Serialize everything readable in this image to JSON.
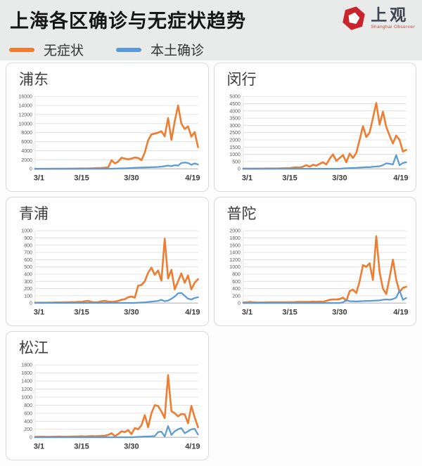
{
  "header": {
    "title": "上海各区确诊与无症状趋势",
    "logo": {
      "text": "上观",
      "subtext": "Shanghai Observer",
      "color": "#C8252C"
    }
  },
  "legend": [
    {
      "label": "无症状",
      "color": "#ED7D31"
    },
    {
      "label": "本土确诊",
      "color": "#5B9BD5"
    }
  ],
  "colors": {
    "asymptomatic": "#ED7D31",
    "confirmed": "#5B9BD5",
    "grid": "#dcdcdc",
    "axis": "#b3b3b3"
  },
  "chart_data": [
    {
      "type": "line",
      "title": "浦东",
      "grid": true,
      "legend_position": "none",
      "ylim": [
        0,
        16000
      ],
      "ytick_step": 2000,
      "x_ticks": {
        "labels": [
          "3/1",
          "3/15",
          "3/30",
          "4/19"
        ],
        "indexes": [
          0,
          14,
          29,
          49
        ]
      },
      "series": [
        {
          "name": "无症状",
          "color": "#ED7D31",
          "values": [
            5,
            5,
            5,
            8,
            8,
            10,
            12,
            15,
            18,
            20,
            25,
            30,
            40,
            50,
            60,
            60,
            80,
            100,
            130,
            160,
            200,
            250,
            300,
            1900,
            1200,
            1600,
            2450,
            2250,
            2100,
            2250,
            2500,
            2400,
            1900,
            3600,
            6300,
            7600,
            7800,
            8000,
            8300,
            7200,
            11200,
            6400,
            10500,
            14000,
            10000,
            8800,
            9400,
            7100,
            8100,
            4800
          ]
        },
        {
          "name": "本土确诊",
          "color": "#5B9BD5",
          "values": [
            0,
            0,
            0,
            0,
            0,
            0,
            0,
            0,
            0,
            0,
            0,
            0,
            0,
            0,
            0,
            0,
            0,
            0,
            5,
            5,
            10,
            10,
            15,
            30,
            50,
            80,
            100,
            120,
            150,
            180,
            220,
            250,
            280,
            300,
            320,
            350,
            380,
            420,
            480,
            600,
            700,
            600,
            800,
            700,
            1300,
            1400,
            1300,
            900,
            1200,
            950
          ]
        }
      ]
    },
    {
      "type": "line",
      "title": "闵行",
      "grid": true,
      "legend_position": "none",
      "ylim": [
        0,
        5000
      ],
      "ytick_step": 500,
      "x_ticks": {
        "labels": [
          "3/1",
          "3/15",
          "3/30",
          "4/19"
        ],
        "indexes": [
          0,
          14,
          29,
          49
        ]
      },
      "series": [
        {
          "name": "无症状",
          "color": "#ED7D31",
          "values": [
            10,
            10,
            10,
            12,
            12,
            15,
            15,
            18,
            20,
            22,
            25,
            30,
            35,
            45,
            55,
            80,
            100,
            80,
            150,
            250,
            150,
            280,
            220,
            350,
            450,
            300,
            700,
            1000,
            550,
            750,
            950,
            450,
            1050,
            750,
            1100,
            2000,
            2950,
            2200,
            2500,
            3500,
            4550,
            3050,
            3950,
            2900,
            2300,
            1750,
            2300,
            2000,
            1200,
            1300
          ]
        },
        {
          "name": "本土确诊",
          "color": "#5B9BD5",
          "values": [
            0,
            0,
            0,
            0,
            0,
            0,
            0,
            0,
            0,
            0,
            0,
            0,
            0,
            0,
            0,
            0,
            0,
            0,
            0,
            0,
            0,
            0,
            0,
            0,
            0,
            0,
            0,
            0,
            0,
            0,
            30,
            40,
            50,
            60,
            70,
            90,
            100,
            120,
            110,
            140,
            160,
            180,
            250,
            380,
            350,
            300,
            950,
            250,
            400,
            450
          ]
        }
      ]
    },
    {
      "type": "line",
      "title": "青浦",
      "grid": true,
      "legend_position": "none",
      "ylim": [
        0,
        1000
      ],
      "ytick_step": 100,
      "x_ticks": {
        "labels": [
          "3/1",
          "3/15",
          "3/30",
          "4/19"
        ],
        "indexes": [
          0,
          14,
          29,
          49
        ]
      },
      "series": [
        {
          "name": "无症状",
          "color": "#ED7D31",
          "values": [
            5,
            5,
            5,
            5,
            6,
            6,
            8,
            8,
            8,
            10,
            10,
            12,
            12,
            15,
            15,
            25,
            30,
            15,
            10,
            12,
            25,
            30,
            20,
            15,
            20,
            30,
            45,
            55,
            80,
            90,
            75,
            240,
            250,
            300,
            420,
            490,
            390,
            450,
            310,
            890,
            340,
            460,
            190,
            300,
            410,
            280,
            380,
            190,
            280,
            330
          ]
        },
        {
          "name": "本土确诊",
          "color": "#5B9BD5",
          "values": [
            2,
            2,
            2,
            2,
            2,
            2,
            2,
            2,
            2,
            2,
            2,
            2,
            2,
            2,
            2,
            2,
            2,
            2,
            2,
            2,
            2,
            2,
            2,
            2,
            2,
            2,
            2,
            2,
            2,
            2,
            2,
            5,
            8,
            10,
            15,
            20,
            25,
            30,
            45,
            25,
            35,
            60,
            90,
            135,
            140,
            100,
            60,
            50,
            70,
            80
          ]
        }
      ]
    },
    {
      "type": "line",
      "title": "普陀",
      "grid": true,
      "legend_position": "none",
      "ylim": [
        0,
        2000
      ],
      "ytick_step": 200,
      "x_ticks": {
        "labels": [
          "3/1",
          "3/15",
          "3/30",
          "4/19"
        ],
        "indexes": [
          0,
          14,
          29,
          49
        ]
      },
      "series": [
        {
          "name": "无症状",
          "color": "#ED7D31",
          "values": [
            15,
            20,
            30,
            20,
            15,
            15,
            15,
            18,
            18,
            20,
            20,
            20,
            22,
            22,
            25,
            25,
            28,
            30,
            30,
            35,
            30,
            40,
            35,
            40,
            35,
            60,
            90,
            100,
            100,
            110,
            150,
            60,
            330,
            370,
            280,
            600,
            1050,
            1000,
            1100,
            640,
            1850,
            850,
            400,
            250,
            700,
            1200,
            650,
            300,
            420,
            450
          ]
        },
        {
          "name": "本土确诊",
          "color": "#5B9BD5",
          "values": [
            2,
            2,
            2,
            2,
            2,
            2,
            2,
            2,
            2,
            2,
            2,
            2,
            2,
            2,
            2,
            2,
            2,
            2,
            2,
            2,
            2,
            2,
            2,
            2,
            2,
            2,
            2,
            2,
            2,
            2,
            20,
            80,
            50,
            50,
            45,
            50,
            55,
            60,
            60,
            65,
            70,
            75,
            90,
            100,
            90,
            110,
            150,
            350,
            90,
            140
          ]
        }
      ]
    },
    {
      "type": "line",
      "title": "松江",
      "grid": true,
      "legend_position": "none",
      "ylim": [
        0,
        1800
      ],
      "ytick_step": 200,
      "x_ticks": {
        "labels": [
          "3/1",
          "3/15",
          "3/30",
          "4/19"
        ],
        "indexes": [
          0,
          14,
          29,
          49
        ]
      },
      "series": [
        {
          "name": "无症状",
          "color": "#ED7D31",
          "values": [
            10,
            12,
            15,
            12,
            10,
            12,
            15,
            18,
            15,
            12,
            15,
            18,
            20,
            22,
            25,
            20,
            25,
            30,
            25,
            30,
            35,
            40,
            60,
            100,
            30,
            80,
            150,
            130,
            180,
            80,
            230,
            200,
            300,
            550,
            250,
            600,
            800,
            780,
            640,
            480,
            1550,
            650,
            600,
            520,
            580,
            570,
            350,
            780,
            500,
            250
          ]
        },
        {
          "name": "本土确诊",
          "color": "#5B9BD5",
          "values": [
            2,
            2,
            2,
            2,
            2,
            2,
            2,
            2,
            2,
            2,
            2,
            2,
            2,
            2,
            2,
            2,
            2,
            2,
            2,
            2,
            2,
            2,
            2,
            2,
            2,
            2,
            2,
            2,
            2,
            2,
            5,
            10,
            15,
            20,
            20,
            25,
            30,
            130,
            140,
            20,
            280,
            60,
            150,
            200,
            230,
            100,
            150,
            200,
            210,
            70
          ]
        }
      ]
    }
  ]
}
